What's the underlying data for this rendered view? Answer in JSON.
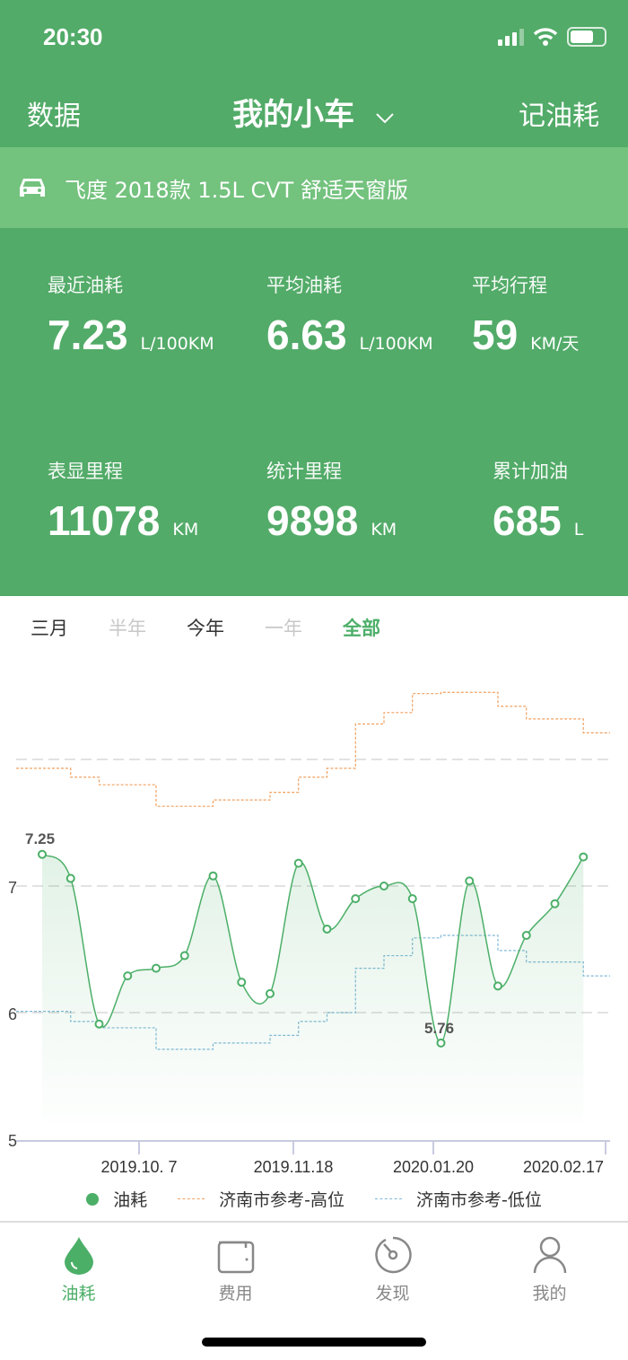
{
  "status_bar": {
    "time": "20:30"
  },
  "header": {
    "left": "数据",
    "title": "我的小车",
    "right": "记油耗"
  },
  "car": {
    "model": "飞度 2018款 1.5L CVT 舒适天窗版"
  },
  "stats": [
    {
      "label": "最近油耗",
      "value": "7.23",
      "unit": "L/100KM"
    },
    {
      "label": "平均油耗",
      "value": "6.63",
      "unit": "L/100KM"
    },
    {
      "label": "平均行程",
      "value": "59",
      "unit": "KM/天"
    },
    {
      "label": "表显里程",
      "value": "11078",
      "unit": "KM"
    },
    {
      "label": "统计里程",
      "value": "9898",
      "unit": "KM"
    },
    {
      "label": "累计加油",
      "value": "685",
      "unit": "L"
    }
  ],
  "range_tabs": [
    {
      "label": "三月",
      "state": "enabled"
    },
    {
      "label": "半年",
      "state": "disabled"
    },
    {
      "label": "今年",
      "state": "enabled"
    },
    {
      "label": "一年",
      "state": "disabled"
    },
    {
      "label": "全部",
      "state": "selected"
    }
  ],
  "colors": {
    "primary": "#52ab68",
    "banner": "#73c27e",
    "line": "#4caf68",
    "high": "#f0a060",
    "low": "#7fb8d8"
  },
  "chart_data": {
    "type": "line",
    "ylim": [
      5,
      8.6
    ],
    "yticks": [
      "5",
      "6",
      "7"
    ],
    "grid": true,
    "legend_position": "bottom",
    "xtick_labels": [
      "2019.10. 7",
      "2019.11.18",
      "2020.01.20",
      "2020.02.17"
    ],
    "annotations": {
      "max": "7.25",
      "min": "5.76"
    },
    "series": [
      {
        "name": "油耗",
        "style": "smooth",
        "values": [
          7.25,
          7.06,
          5.91,
          6.29,
          6.35,
          6.45,
          7.08,
          6.24,
          6.15,
          7.18,
          6.66,
          6.9,
          7.0,
          6.9,
          5.76,
          7.04,
          6.21,
          6.61,
          6.86,
          7.23
        ]
      },
      {
        "name": "济南市参考-高位",
        "style": "step",
        "values": [
          7.93,
          7.86,
          7.8,
          7.8,
          7.63,
          7.63,
          7.68,
          7.68,
          7.74,
          7.86,
          7.93,
          8.28,
          8.37,
          8.52,
          8.53,
          8.53,
          8.42,
          8.32,
          8.32,
          8.21
        ]
      },
      {
        "name": "济南市参考-低位",
        "style": "step",
        "values": [
          6.01,
          5.93,
          5.88,
          5.88,
          5.71,
          5.71,
          5.76,
          5.76,
          5.82,
          5.93,
          6.0,
          6.35,
          6.45,
          6.59,
          6.61,
          6.61,
          6.49,
          6.4,
          6.4,
          6.29
        ]
      }
    ]
  },
  "tabbar": [
    {
      "label": "油耗",
      "icon": "drop-icon",
      "active": true
    },
    {
      "label": "费用",
      "icon": "wallet-icon",
      "active": false
    },
    {
      "label": "发现",
      "icon": "gauge-icon",
      "active": false
    },
    {
      "label": "我的",
      "icon": "user-icon",
      "active": false
    }
  ]
}
